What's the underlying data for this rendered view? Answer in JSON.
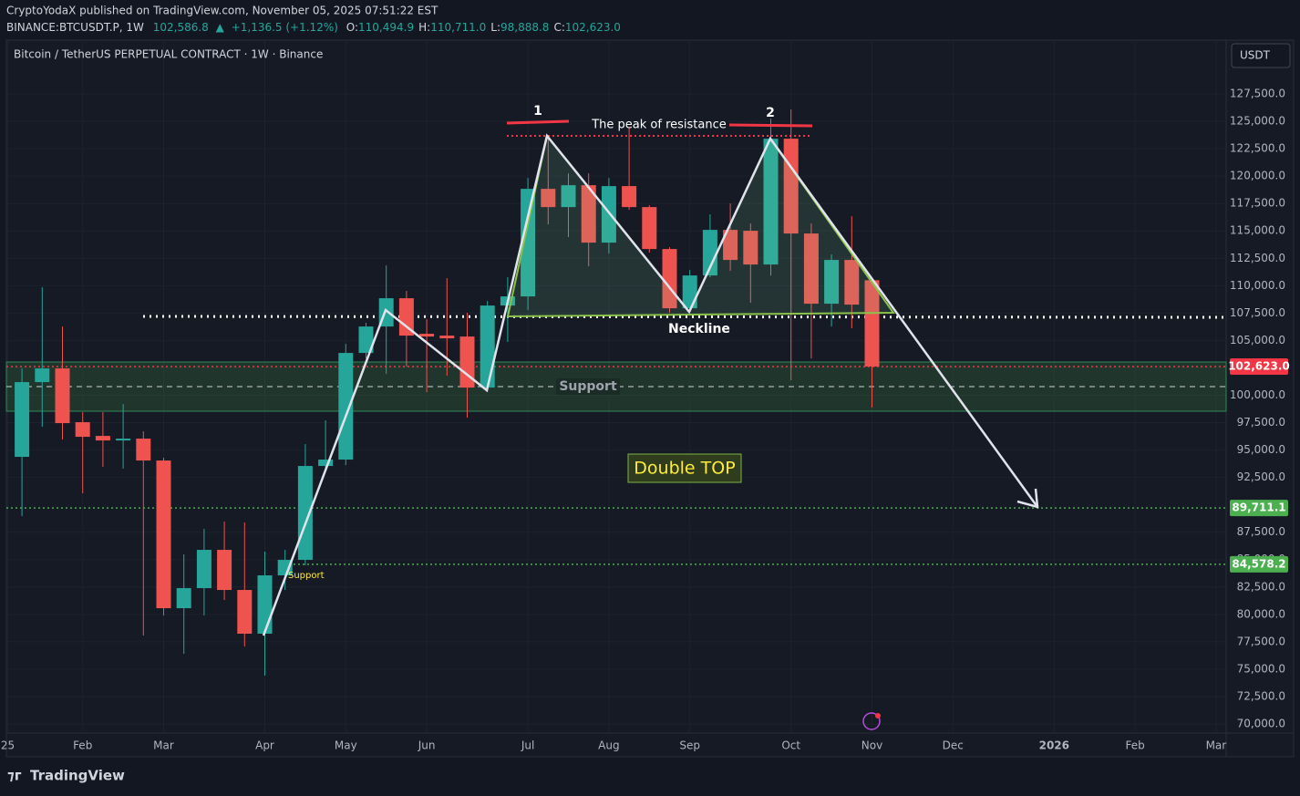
{
  "header": {
    "publisher": "CryptoYodaX published on TradingView.com, November 05, 2025 07:51:22 EST",
    "symbol": "BINANCE:BTCUSDT.P, 1W",
    "last": "102,586.8",
    "arrow": "▲",
    "change": "+1,136.5 (+1.12%)",
    "ohlc": [
      {
        "label": "O:",
        "value": "110,494.9"
      },
      {
        "label": "H:",
        "value": "110,711.0"
      },
      {
        "label": "L:",
        "value": "98,888.8"
      },
      {
        "label": "C:",
        "value": "102,623.0"
      }
    ]
  },
  "chart_data": {
    "type": "candlestick",
    "title": "Bitcoin / TetherUS PERPETUAL CONTRACT · 1W · Binance",
    "currency": "USDT",
    "x": [
      0,
      1,
      2,
      3,
      4,
      5,
      6,
      7,
      8,
      9,
      10,
      11,
      12,
      13,
      14,
      15,
      16,
      17,
      18,
      19,
      20,
      21,
      22,
      23,
      24,
      25,
      26,
      27,
      28,
      29,
      30,
      31,
      32,
      33,
      34,
      35,
      36,
      37,
      38,
      39,
      40,
      41,
      42
    ],
    "open": [
      94378,
      101200,
      102448,
      97540,
      96291,
      95875,
      96042,
      94045,
      80566,
      82397,
      85891,
      82230,
      78237,
      83562,
      84976,
      93546,
      94128,
      103862,
      106275,
      108854,
      105610,
      105443,
      105360,
      100701,
      108189,
      109021,
      118838,
      117174,
      119171,
      113930,
      119088,
      117174,
      113346,
      107939,
      110934,
      115094,
      115011,
      111933,
      123414,
      114762,
      108355,
      112349,
      110494.9
    ],
    "high": [
      102448,
      109854,
      106275,
      98454,
      98454,
      99203,
      96708,
      94294,
      85475,
      87805,
      88470,
      88387,
      85725,
      85891,
      95542,
      97706,
      104694,
      106608,
      111850,
      109520,
      106941,
      110685,
      107523,
      108605,
      110768,
      119837,
      123747,
      120253,
      120253,
      119837,
      124413,
      117341,
      113513,
      111434,
      116509,
      117507,
      115677,
      125245,
      126077,
      115677,
      112848,
      116342,
      110711
    ],
    "low": [
      88970,
      97123,
      95958,
      91050,
      93462,
      93296,
      78070,
      79901,
      76406,
      79901,
      81315,
      77072,
      74410,
      82230,
      84477,
      93379,
      93629,
      103363,
      101949,
      102614,
      100285,
      101782,
      97955,
      100285,
      104861,
      107773,
      115594,
      114429,
      111766,
      112931,
      116925,
      113014,
      107523,
      107606,
      110768,
      111350,
      108438,
      110934,
      101366,
      103363,
      106275,
      106108,
      98888.8
    ],
    "close": [
      101200,
      102448,
      97456,
      96208,
      95875,
      96042,
      94045,
      80566,
      82397,
      85891,
      82230,
      78237,
      83562,
      84976,
      93546,
      94128,
      103862,
      106275,
      108854,
      105443,
      105360,
      105194,
      100701,
      108189,
      109021,
      118838,
      117174,
      119171,
      113930,
      119088,
      117174,
      113346,
      107939,
      110934,
      115094,
      112349,
      111933,
      123414,
      114762,
      108355,
      112349,
      108272,
      102623
    ],
    "up_color": "#26a69a",
    "down_color": "#ef5350",
    "xlim": [
      -0.77,
      59.5
    ],
    "ylim": [
      69168,
      132411
    ],
    "xticks": [
      {
        "value": -0.7,
        "label": "25"
      },
      {
        "value": 3,
        "label": "Feb"
      },
      {
        "value": 7,
        "label": "Mar"
      },
      {
        "value": 12,
        "label": "Apr"
      },
      {
        "value": 16,
        "label": "May"
      },
      {
        "value": 20,
        "label": "Jun"
      },
      {
        "value": 25,
        "label": "Jul"
      },
      {
        "value": 29,
        "label": "Aug"
      },
      {
        "value": 33,
        "label": "Sep"
      },
      {
        "value": 38,
        "label": "Oct"
      },
      {
        "value": 42,
        "label": "Nov"
      },
      {
        "value": 46,
        "label": "Dec"
      },
      {
        "value": 51,
        "label": "2026"
      },
      {
        "value": 55,
        "label": "Feb"
      },
      {
        "value": 59,
        "label": "Mar"
      }
    ],
    "yticks": [
      {
        "value": 127500,
        "label": "127,500.0"
      },
      {
        "value": 125000,
        "label": "125,000.0"
      },
      {
        "value": 122500,
        "label": "122,500.0"
      },
      {
        "value": 120000,
        "label": "120,000.0"
      },
      {
        "value": 117500,
        "label": "117,500.0"
      },
      {
        "value": 115000,
        "label": "115,000.0"
      },
      {
        "value": 112500,
        "label": "112,500.0"
      },
      {
        "value": 110000,
        "label": "110,000.0"
      },
      {
        "value": 107500,
        "label": "107,500.0"
      },
      {
        "value": 105000,
        "label": "105,000.0"
      },
      {
        "value": 102500,
        "label": "102,500.0"
      },
      {
        "value": 100000,
        "label": "100,000.0"
      },
      {
        "value": 97500,
        "label": "97,500.0"
      },
      {
        "value": 95000,
        "label": "95,000.0"
      },
      {
        "value": 92500,
        "label": "92,500.0"
      },
      {
        "value": 87500,
        "label": "87,500.0"
      },
      {
        "value": 85000,
        "label": "85,000.0"
      },
      {
        "value": 82500,
        "label": "82,500.0"
      },
      {
        "value": 80000,
        "label": "80,000.0"
      },
      {
        "value": 77500,
        "label": "77,500.0"
      },
      {
        "value": 75000,
        "label": "75,000.0"
      },
      {
        "value": 72500,
        "label": "72,500.0"
      },
      {
        "value": 70000,
        "label": "70,000.0"
      }
    ],
    "grid": true,
    "levels": [
      {
        "value": 102623,
        "label": "102,623.0",
        "color": "#f23645"
      },
      {
        "value": 89711.1,
        "label": "89,711.1",
        "color": "#4caf50"
      },
      {
        "value": 84578.2,
        "label": "84,578.2",
        "color": "#4caf50"
      }
    ],
    "annotations": [
      "1",
      "2",
      "The peak of resistance",
      "Neckline",
      "Support",
      "Double TOP",
      "Support"
    ]
  },
  "footer": {
    "brand": "TradingView"
  }
}
